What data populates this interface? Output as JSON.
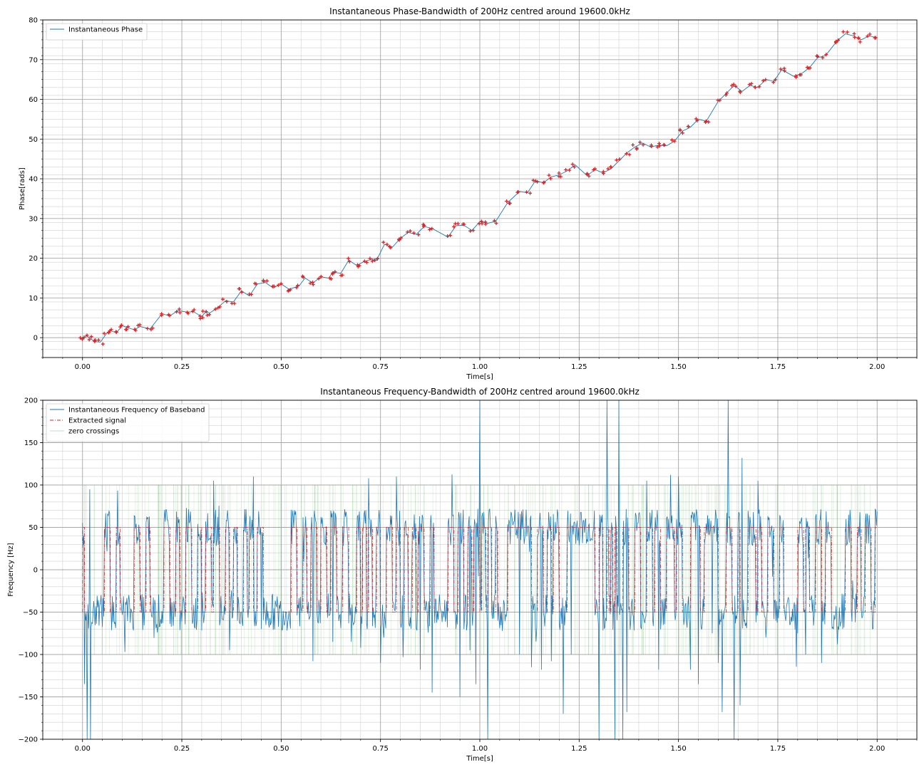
{
  "chart_data": [
    {
      "type": "line",
      "title": "Instantaneous Phase-Bandwidth of 200Hz centred around 19600.0kHz",
      "xlabel": "Time[s]",
      "ylabel": "Phase[rads]",
      "xlim": [
        -0.1,
        2.1
      ],
      "ylim": [
        -5,
        80
      ],
      "xticks": [
        0.0,
        0.25,
        0.5,
        0.75,
        1.0,
        1.25,
        1.5,
        1.75,
        2.0
      ],
      "xtick_labels": [
        "0.00",
        "0.25",
        "0.50",
        "0.75",
        "1.00",
        "1.25",
        "1.50",
        "1.75",
        "2.00"
      ],
      "yticks": [
        0,
        10,
        20,
        30,
        40,
        50,
        60,
        70,
        80
      ],
      "ytick_labels": [
        "0",
        "10",
        "20",
        "30",
        "40",
        "50",
        "60",
        "70",
        "80"
      ],
      "grid": true,
      "legend_position": "top-left",
      "colors": {
        "line": "#1f77b4",
        "markers": "#d62728"
      },
      "series": [
        {
          "name": "Instantaneous Phase",
          "points": [
            [
              0.0,
              -0.3
            ],
            [
              0.01,
              0.5
            ],
            [
              0.02,
              -0.2
            ],
            [
              0.03,
              -1.0
            ],
            [
              0.045,
              -1.1
            ],
            [
              0.06,
              1.0
            ],
            [
              0.07,
              1.8
            ],
            [
              0.085,
              1.2
            ],
            [
              0.1,
              3.0
            ],
            [
              0.115,
              2.5
            ],
            [
              0.13,
              2.0
            ],
            [
              0.145,
              2.8
            ],
            [
              0.17,
              2.2
            ],
            [
              0.2,
              6.0
            ],
            [
              0.22,
              5.5
            ],
            [
              0.24,
              6.8
            ],
            [
              0.26,
              6.5
            ],
            [
              0.28,
              6.5
            ],
            [
              0.3,
              5.3
            ],
            [
              0.31,
              6.5
            ],
            [
              0.32,
              6.2
            ],
            [
              0.34,
              7.5
            ],
            [
              0.36,
              9.3
            ],
            [
              0.38,
              9.0
            ],
            [
              0.4,
              11.8
            ],
            [
              0.42,
              10.5
            ],
            [
              0.44,
              13.5
            ],
            [
              0.46,
              13.9
            ],
            [
              0.48,
              12.5
            ],
            [
              0.5,
              13.5
            ],
            [
              0.52,
              12.2
            ],
            [
              0.545,
              13.0
            ],
            [
              0.56,
              15.0
            ],
            [
              0.58,
              13.8
            ],
            [
              0.6,
              15.3
            ],
            [
              0.62,
              15.0
            ],
            [
              0.63,
              16.5
            ],
            [
              0.65,
              16.2
            ],
            [
              0.67,
              19.5
            ],
            [
              0.69,
              18.2
            ],
            [
              0.71,
              19.2
            ],
            [
              0.73,
              19.8
            ],
            [
              0.74,
              19.5
            ],
            [
              0.76,
              23.5
            ],
            [
              0.78,
              22.8
            ],
            [
              0.8,
              25.0
            ],
            [
              0.82,
              26.5
            ],
            [
              0.84,
              26.0
            ],
            [
              0.86,
              28.0
            ],
            [
              0.88,
              27.5
            ],
            [
              0.92,
              25.3
            ],
            [
              0.94,
              28.2
            ],
            [
              0.96,
              28.3
            ],
            [
              0.98,
              27.0
            ],
            [
              1.0,
              29.2
            ],
            [
              1.02,
              28.8
            ],
            [
              1.04,
              29.3
            ],
            [
              1.07,
              34.0
            ],
            [
              1.1,
              36.8
            ],
            [
              1.12,
              36.5
            ],
            [
              1.14,
              39.5
            ],
            [
              1.16,
              39.0
            ],
            [
              1.18,
              40.5
            ],
            [
              1.2,
              41.0
            ],
            [
              1.22,
              42.0
            ],
            [
              1.24,
              43.5
            ],
            [
              1.27,
              40.8
            ],
            [
              1.29,
              42.3
            ],
            [
              1.31,
              41.5
            ],
            [
              1.33,
              42.5
            ],
            [
              1.35,
              44.5
            ],
            [
              1.37,
              46.5
            ],
            [
              1.39,
              48.0
            ],
            [
              1.41,
              49.0
            ],
            [
              1.43,
              48.0
            ],
            [
              1.45,
              48.5
            ],
            [
              1.47,
              48.3
            ],
            [
              1.49,
              49.5
            ],
            [
              1.51,
              52.0
            ],
            [
              1.53,
              53.0
            ],
            [
              1.55,
              55.0
            ],
            [
              1.57,
              54.5
            ],
            [
              1.6,
              59.5
            ],
            [
              1.62,
              61.5
            ],
            [
              1.64,
              63.5
            ],
            [
              1.66,
              62.0
            ],
            [
              1.68,
              63.5
            ],
            [
              1.7,
              63.0
            ],
            [
              1.72,
              65.0
            ],
            [
              1.74,
              64.5
            ],
            [
              1.76,
              67.5
            ],
            [
              1.79,
              65.8
            ],
            [
              1.81,
              66.5
            ],
            [
              1.83,
              68.0
            ],
            [
              1.85,
              70.5
            ],
            [
              1.87,
              71.0
            ],
            [
              1.9,
              74.8
            ],
            [
              1.92,
              76.5
            ],
            [
              1.94,
              76.0
            ],
            [
              1.96,
              75.0
            ],
            [
              1.98,
              76.0
            ],
            [
              2.0,
              75.5
            ]
          ]
        }
      ]
    },
    {
      "type": "line",
      "title": "Instantaneous Frequency-Bandwidth of 200Hz centred around 19600.0kHz",
      "xlabel": "Time[s]",
      "ylabel": "Frequency [Hz]",
      "xlim": [
        -0.1,
        2.1
      ],
      "ylim": [
        -200,
        200
      ],
      "xticks": [
        0.0,
        0.25,
        0.5,
        0.75,
        1.0,
        1.25,
        1.5,
        1.75,
        2.0
      ],
      "xtick_labels": [
        "0.00",
        "0.25",
        "0.50",
        "0.75",
        "1.00",
        "1.25",
        "1.50",
        "1.75",
        "2.00"
      ],
      "yticks": [
        -200,
        -150,
        -100,
        -50,
        0,
        50,
        100,
        150,
        200
      ],
      "ytick_labels": [
        "−200",
        "−150",
        "−100",
        "−50",
        "0",
        "50",
        "100",
        "150",
        "200"
      ],
      "grid": true,
      "legend_position": "top-left",
      "colors": {
        "baseband": "#1f77b4",
        "extracted": "#d62728",
        "zero_crossings": "#2ca02c"
      },
      "series": [
        {
          "name": "Instantaneous Frequency of Baseband",
          "style": "solid",
          "samples": 1200,
          "level_high": 50,
          "level_low": -50,
          "noise_amplitude": 22,
          "spikes": [
            [
              0.005,
              -135
            ],
            [
              0.012,
              -200
            ],
            [
              0.018,
              95
            ],
            [
              0.02,
              -205
            ],
            [
              0.33,
              105
            ],
            [
              0.43,
              110
            ],
            [
              0.45,
              -70
            ],
            [
              0.58,
              -108
            ],
            [
              0.63,
              -85
            ],
            [
              0.7,
              -92
            ],
            [
              0.72,
              108
            ],
            [
              0.75,
              -110
            ],
            [
              0.79,
              110
            ],
            [
              0.85,
              -118
            ],
            [
              0.88,
              -145
            ],
            [
              0.95,
              -150
            ],
            [
              0.975,
              -95
            ],
            [
              0.99,
              -135
            ],
            [
              1.0,
              200
            ],
            [
              1.02,
              -200
            ],
            [
              1.1,
              -100
            ],
            [
              1.13,
              -115
            ],
            [
              1.155,
              -118
            ],
            [
              1.18,
              -108
            ],
            [
              1.21,
              -170
            ],
            [
              1.23,
              -100
            ],
            [
              1.3,
              -200
            ],
            [
              1.32,
              200
            ],
            [
              1.34,
              -200
            ],
            [
              1.35,
              200
            ],
            [
              1.36,
              -200
            ],
            [
              1.37,
              -168
            ],
            [
              1.42,
              105
            ],
            [
              1.45,
              -118
            ],
            [
              1.48,
              112
            ],
            [
              1.5,
              110
            ],
            [
              1.53,
              -118
            ],
            [
              1.55,
              -135
            ],
            [
              1.585,
              -75
            ],
            [
              1.6,
              -110
            ],
            [
              1.61,
              -168
            ],
            [
              1.625,
              200
            ],
            [
              1.64,
              -200
            ],
            [
              1.655,
              -160
            ],
            [
              1.66,
              132
            ],
            [
              1.7,
              105
            ],
            [
              1.72,
              -80
            ],
            [
              1.8,
              -75
            ],
            [
              1.82,
              -100
            ],
            [
              1.86,
              -110
            ],
            [
              1.9,
              -88
            ]
          ]
        },
        {
          "name": "Extracted signal",
          "style": "dash-dot",
          "level_high": 50,
          "level_low": -50,
          "transitions": [
            0.0,
            0.005,
            0.055,
            0.07,
            0.085,
            0.095,
            0.13,
            0.145,
            0.16,
            0.17,
            0.205,
            0.22,
            0.235,
            0.245,
            0.26,
            0.275,
            0.29,
            0.3,
            0.31,
            0.325,
            0.33,
            0.345,
            0.36,
            0.37,
            0.38,
            0.39,
            0.405,
            0.415,
            0.42,
            0.43,
            0.44,
            0.455,
            0.525,
            0.54,
            0.555,
            0.565,
            0.575,
            0.59,
            0.6,
            0.615,
            0.625,
            0.64,
            0.655,
            0.67,
            0.69,
            0.7,
            0.705,
            0.715,
            0.72,
            0.73,
            0.74,
            0.75,
            0.765,
            0.78,
            0.79,
            0.8,
            0.81,
            0.82,
            0.83,
            0.84,
            0.845,
            0.86,
            0.875,
            0.885,
            0.92,
            0.935,
            0.945,
            0.96,
            0.97,
            0.98,
            0.985,
            1.0,
            1.005,
            1.015,
            1.02,
            1.03,
            1.04,
            1.045,
            1.07,
            1.13,
            1.145,
            1.16,
            1.17,
            1.18,
            1.185,
            1.2,
            1.22,
            1.29,
            1.3,
            1.31,
            1.32,
            1.325,
            1.33,
            1.335,
            1.34,
            1.345,
            1.36,
            1.375,
            1.39,
            1.405,
            1.42,
            1.435,
            1.44,
            1.455,
            1.47,
            1.49,
            1.495,
            1.51,
            1.53,
            1.555,
            1.565,
            1.6,
            1.62,
            1.635,
            1.65,
            1.655,
            1.675,
            1.695,
            1.7,
            1.71,
            1.725,
            1.74,
            1.755,
            1.765,
            1.8,
            1.815,
            1.82,
            1.83,
            1.845,
            1.86,
            1.87,
            1.885,
            1.92,
            1.935,
            1.95,
            1.96,
            1.97,
            1.985,
            1.995
          ]
        },
        {
          "name": "zero crossings",
          "style": "solid-faint",
          "span": [
            -100,
            100
          ],
          "count": 260
        }
      ]
    }
  ]
}
